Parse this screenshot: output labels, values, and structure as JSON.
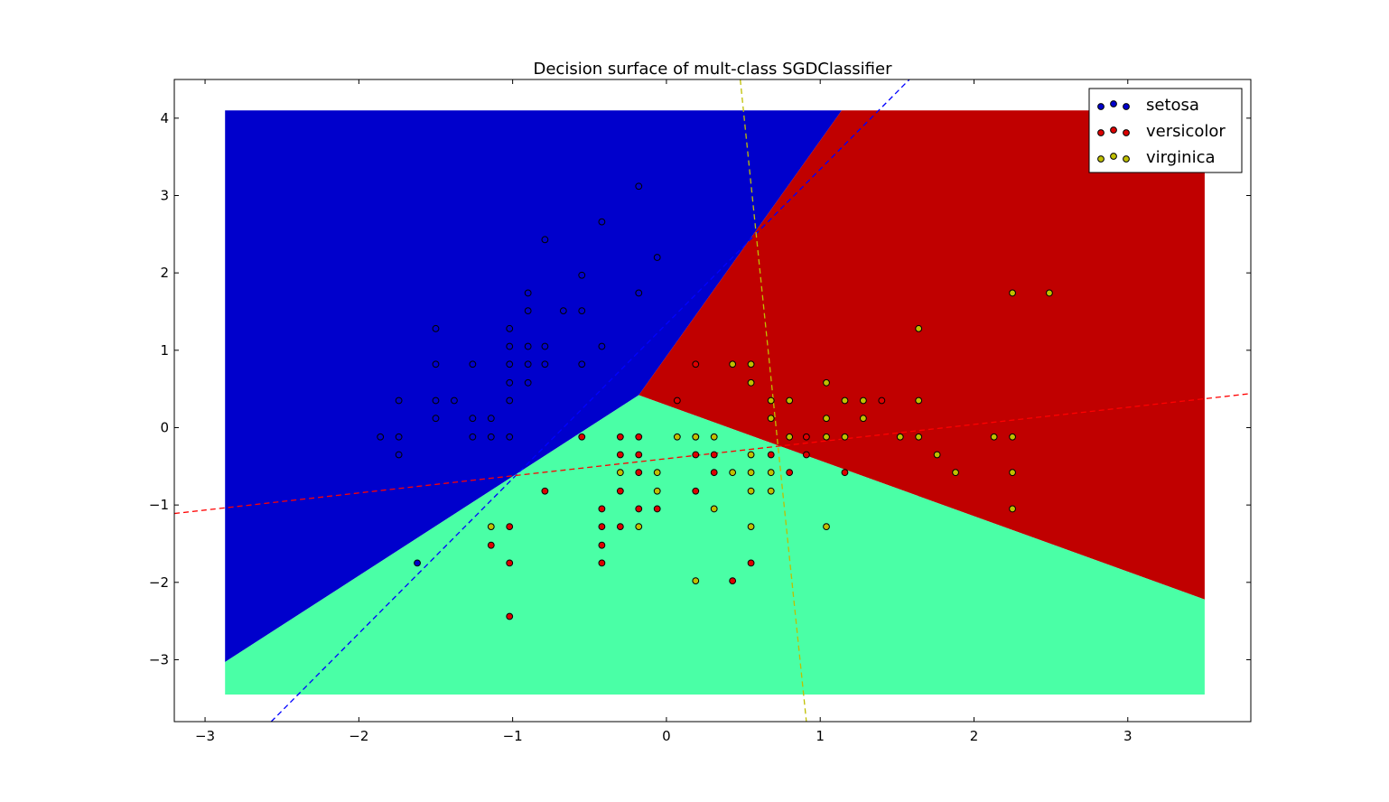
{
  "chart_data": {
    "type": "scatter",
    "title": "Decision surface of mult-class SGDClassifier",
    "xlabel": "",
    "ylabel": "",
    "xlim": [
      -3.2,
      3.8
    ],
    "ylim": [
      -3.8,
      4.5
    ],
    "xticks": [
      -3,
      -2,
      -1,
      0,
      1,
      2,
      3
    ],
    "yticks": [
      -3,
      -2,
      -1,
      0,
      1,
      2,
      3,
      4
    ],
    "xtick_labels": [
      "−3",
      "−2",
      "−1",
      "0",
      "1",
      "2",
      "3"
    ],
    "ytick_labels": [
      "−3",
      "−2",
      "−1",
      "0",
      "1",
      "2",
      "3",
      "4"
    ],
    "grid": false,
    "legend_position": "top-right",
    "surface": {
      "x_range": [
        -2.87,
        3.5
      ],
      "y_range": [
        -3.45,
        4.1
      ],
      "regions": [
        {
          "class": "setosa",
          "color": "#0000cc",
          "polygon": [
            [
              -2.87,
              4.1
            ],
            [
              1.14,
              4.1
            ],
            [
              -0.18,
              0.42
            ],
            [
              -2.87,
              -3.03
            ]
          ]
        },
        {
          "class": "versicolor",
          "color": "#c00000",
          "polygon": [
            [
              1.14,
              4.1
            ],
            [
              3.5,
              4.1
            ],
            [
              3.5,
              -2.22
            ],
            [
              -0.18,
              0.42
            ]
          ]
        },
        {
          "class": "virginica",
          "color": "#4affa6",
          "polygon": [
            [
              -0.18,
              0.42
            ],
            [
              3.5,
              -2.22
            ],
            [
              3.5,
              -3.45
            ],
            [
              -2.87,
              -3.45
            ],
            [
              -2.87,
              -3.03
            ]
          ]
        }
      ]
    },
    "hyperplanes": [
      {
        "class": "setosa",
        "color": "#0000ff",
        "points": [
          [
            -2.57,
            -3.8
          ],
          [
            1.58,
            4.5
          ]
        ]
      },
      {
        "class": "versicolor",
        "color": "#ff0000",
        "points": [
          [
            -3.2,
            -1.11
          ],
          [
            3.8,
            0.44
          ]
        ]
      },
      {
        "class": "virginica",
        "color": "#bfbf00",
        "points": [
          [
            0.48,
            4.5
          ],
          [
            0.91,
            -3.8
          ]
        ]
      }
    ],
    "series": [
      {
        "name": "setosa",
        "color": "#0000cc",
        "points": [
          [
            -0.18,
            3.12
          ],
          [
            -0.42,
            2.66
          ],
          [
            -0.79,
            2.43
          ],
          [
            -0.06,
            2.2
          ],
          [
            -0.55,
            1.97
          ],
          [
            -0.9,
            1.74
          ],
          [
            -0.18,
            1.74
          ],
          [
            -0.9,
            1.51
          ],
          [
            -0.67,
            1.51
          ],
          [
            -0.55,
            1.51
          ],
          [
            -1.5,
            1.28
          ],
          [
            -1.02,
            1.28
          ],
          [
            -1.02,
            1.05
          ],
          [
            -0.9,
            1.05
          ],
          [
            -0.79,
            1.05
          ],
          [
            -0.42,
            1.05
          ],
          [
            -1.5,
            0.82
          ],
          [
            -1.26,
            0.82
          ],
          [
            -1.02,
            0.82
          ],
          [
            -0.9,
            0.82
          ],
          [
            -0.79,
            0.82
          ],
          [
            -0.55,
            0.82
          ],
          [
            -1.02,
            0.58
          ],
          [
            -0.9,
            0.58
          ],
          [
            -1.74,
            0.35
          ],
          [
            -1.5,
            0.35
          ],
          [
            -1.38,
            0.35
          ],
          [
            -1.02,
            0.35
          ],
          [
            -1.5,
            0.12
          ],
          [
            -1.26,
            0.12
          ],
          [
            -1.14,
            0.12
          ],
          [
            -1.86,
            -0.12
          ],
          [
            -1.74,
            -0.12
          ],
          [
            -1.26,
            -0.12
          ],
          [
            -1.14,
            -0.12
          ],
          [
            -1.02,
            -0.12
          ],
          [
            -1.74,
            -0.35
          ],
          [
            -1.62,
            -1.75
          ]
        ]
      },
      {
        "name": "versicolor",
        "color": "#dd0000",
        "points": [
          [
            0.19,
            0.82
          ],
          [
            0.07,
            0.35
          ],
          [
            1.4,
            0.35
          ],
          [
            -0.55,
            -0.12
          ],
          [
            -0.3,
            -0.12
          ],
          [
            -0.18,
            -0.12
          ],
          [
            0.19,
            -0.12
          ],
          [
            0.91,
            -0.12
          ],
          [
            -0.3,
            -0.35
          ],
          [
            -0.18,
            -0.35
          ],
          [
            0.19,
            -0.35
          ],
          [
            0.31,
            -0.35
          ],
          [
            0.68,
            -0.35
          ],
          [
            0.91,
            -0.35
          ],
          [
            -0.18,
            -0.58
          ],
          [
            0.31,
            -0.58
          ],
          [
            0.8,
            -0.58
          ],
          [
            1.16,
            -0.58
          ],
          [
            -0.79,
            -0.82
          ],
          [
            -0.3,
            -0.82
          ],
          [
            0.19,
            -0.82
          ],
          [
            -0.42,
            -1.05
          ],
          [
            -0.18,
            -1.05
          ],
          [
            -0.06,
            -1.05
          ],
          [
            -1.02,
            -1.28
          ],
          [
            -0.42,
            -1.28
          ],
          [
            -0.3,
            -1.28
          ],
          [
            -1.14,
            -1.52
          ],
          [
            -0.42,
            -1.52
          ],
          [
            -1.02,
            -1.75
          ],
          [
            -0.42,
            -1.75
          ],
          [
            0.55,
            -1.75
          ],
          [
            0.43,
            -1.98
          ],
          [
            -1.02,
            -2.44
          ]
        ]
      },
      {
        "name": "virginica",
        "color": "#bfbf00",
        "points": [
          [
            2.25,
            1.74
          ],
          [
            2.49,
            1.74
          ],
          [
            1.64,
            1.28
          ],
          [
            0.43,
            0.82
          ],
          [
            0.55,
            0.82
          ],
          [
            0.55,
            0.58
          ],
          [
            1.04,
            0.58
          ],
          [
            0.68,
            0.35
          ],
          [
            0.8,
            0.35
          ],
          [
            1.16,
            0.35
          ],
          [
            1.28,
            0.35
          ],
          [
            1.64,
            0.35
          ],
          [
            0.68,
            0.12
          ],
          [
            1.04,
            0.12
          ],
          [
            1.28,
            0.12
          ],
          [
            0.07,
            -0.12
          ],
          [
            0.19,
            -0.12
          ],
          [
            0.31,
            -0.12
          ],
          [
            0.8,
            -0.12
          ],
          [
            1.04,
            -0.12
          ],
          [
            1.16,
            -0.12
          ],
          [
            1.52,
            -0.12
          ],
          [
            1.64,
            -0.12
          ],
          [
            2.13,
            -0.12
          ],
          [
            2.25,
            -0.12
          ],
          [
            0.55,
            -0.35
          ],
          [
            1.76,
            -0.35
          ],
          [
            -0.3,
            -0.58
          ],
          [
            -0.06,
            -0.58
          ],
          [
            0.43,
            -0.58
          ],
          [
            0.55,
            -0.58
          ],
          [
            0.68,
            -0.58
          ],
          [
            1.88,
            -0.58
          ],
          [
            2.25,
            -0.58
          ],
          [
            -0.06,
            -0.82
          ],
          [
            0.55,
            -0.82
          ],
          [
            0.68,
            -0.82
          ],
          [
            0.31,
            -1.05
          ],
          [
            2.25,
            -1.05
          ],
          [
            -1.14,
            -1.28
          ],
          [
            -0.18,
            -1.28
          ],
          [
            0.55,
            -1.28
          ],
          [
            1.04,
            -1.28
          ],
          [
            0.19,
            -1.98
          ]
        ]
      }
    ]
  }
}
